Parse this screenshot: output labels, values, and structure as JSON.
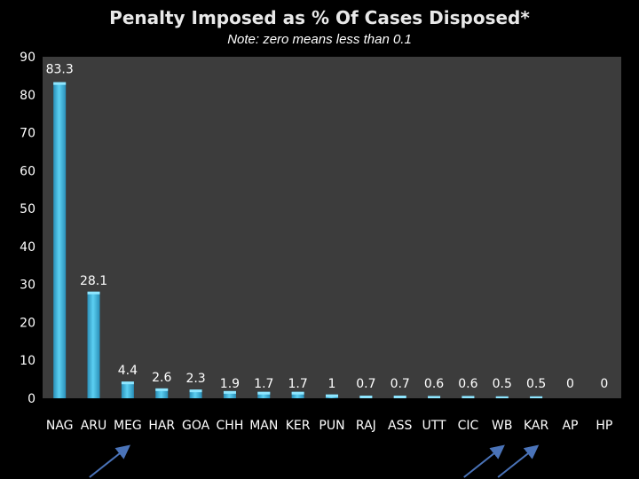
{
  "chart_data": {
    "type": "bar",
    "title": "Penalty Imposed as % Of Cases Disposed*",
    "subtitle": "Note: zero means less than 0.1",
    "xlabel": "",
    "ylabel": "",
    "ylim": [
      0,
      90
    ],
    "yticks": [
      0,
      10,
      20,
      30,
      40,
      50,
      60,
      70,
      80,
      90
    ],
    "grid": false,
    "categories": [
      "NAG",
      "ARU",
      "MEG",
      "HAR",
      "GOA",
      "CHH",
      "MAN",
      "KER",
      "PUN",
      "RAJ",
      "ASS",
      "UTT",
      "CIC",
      "WB",
      "KAR",
      "AP",
      "HP"
    ],
    "values": [
      83.3,
      28.1,
      4.4,
      2.6,
      2.3,
      1.9,
      1.7,
      1.7,
      1,
      0.7,
      0.7,
      0.6,
      0.6,
      0.5,
      0.5,
      0,
      0
    ],
    "data_labels": [
      "83.3",
      "28.1",
      "4.4",
      "2.6",
      "2.3",
      "1.9",
      "1.7",
      "1.7",
      "1",
      "0.7",
      "0.7",
      "0.6",
      "0.6",
      "0.5",
      "0.5",
      "0",
      "0"
    ],
    "annotations": [
      "arrow pointing to MEG",
      "arrow pointing to WB",
      "arrow pointing to KAR"
    ],
    "annotation_targets": [
      "MEG",
      "WB",
      "KAR"
    ]
  },
  "colors": {
    "background": "#000000",
    "plot_area": "#3c3c3c",
    "bar": "#3ab3dc",
    "text": "#ffffff",
    "arrow": "#4a73b8"
  }
}
